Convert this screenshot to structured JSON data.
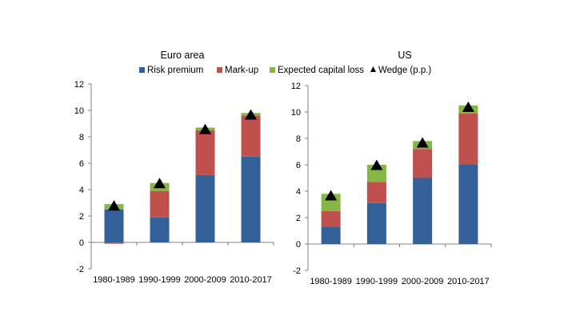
{
  "colors": {
    "risk_premium": "#34609a",
    "mark_up": "#c0504d",
    "expected_capital_loss": "#86b646",
    "wedge": "#000000",
    "axis": "#808080"
  },
  "chart_data": [
    {
      "type": "bar",
      "stacked": true,
      "title": "Euro area",
      "categories": [
        "1980-1989",
        "1990-1999",
        "2000-2009",
        "2010-2017"
      ],
      "ylim": [
        -2,
        12
      ],
      "yticks": [
        "-2",
        "0",
        "2",
        "4",
        "6",
        "8",
        "10",
        "12"
      ],
      "series": [
        {
          "name": "Risk premium",
          "values": [
            2.5,
            1.9,
            5.1,
            6.5
          ]
        },
        {
          "name": "Mark-up",
          "values": [
            -0.1,
            2.0,
            3.4,
            3.1
          ]
        },
        {
          "name": "Expected capital loss",
          "values": [
            0.4,
            0.6,
            0.2,
            0.2
          ]
        }
      ],
      "wedge": {
        "name": "Wedge (p.p.)",
        "values": [
          2.8,
          4.5,
          8.6,
          9.7
        ]
      }
    },
    {
      "type": "bar",
      "stacked": true,
      "title": "US",
      "categories": [
        "1980-1989",
        "1990-1999",
        "2000-2009",
        "2010-2017"
      ],
      "ylim": [
        -2,
        12
      ],
      "yticks": [
        "-2",
        "0",
        "2",
        "4",
        "6",
        "8",
        "10",
        "12"
      ],
      "series": [
        {
          "name": "Risk premium",
          "values": [
            1.3,
            3.1,
            5.0,
            6.0
          ]
        },
        {
          "name": "Mark-up",
          "values": [
            1.2,
            1.6,
            2.2,
            3.9
          ]
        },
        {
          "name": "Expected capital loss",
          "values": [
            1.3,
            1.3,
            0.6,
            0.6
          ]
        }
      ],
      "wedge": {
        "name": "Wedge (p.p.)",
        "values": [
          3.7,
          6.0,
          7.7,
          10.4
        ]
      }
    }
  ],
  "legend": {
    "items": [
      "Risk premium",
      "Mark-up",
      "Expected capital loss",
      "Wedge (p.p.)"
    ]
  }
}
